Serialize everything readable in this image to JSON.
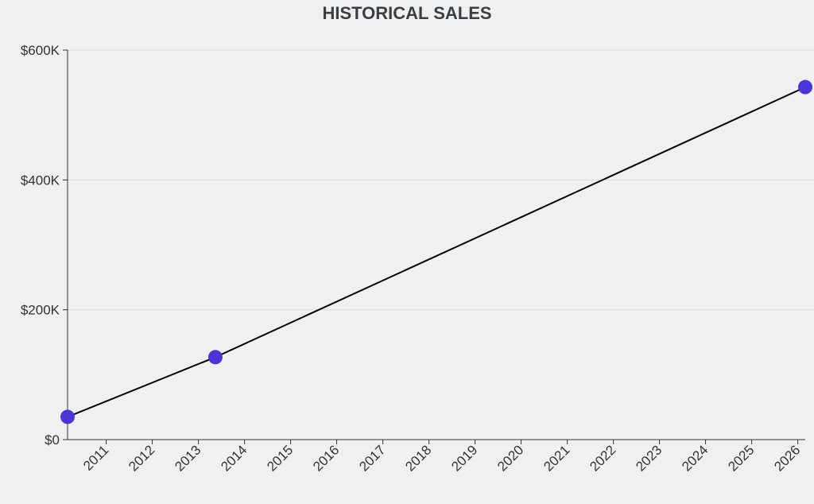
{
  "chart_data": {
    "type": "line",
    "title": "HISTORICAL SALES",
    "xlabel": "",
    "ylabel": "",
    "x_tick_labels": [
      "2011",
      "2012",
      "2013",
      "2014",
      "2015",
      "2016",
      "2017",
      "2018",
      "2019",
      "2020",
      "2021",
      "2022",
      "2023",
      "2024",
      "2025",
      "2026"
    ],
    "y_tick_labels": [
      "$0",
      "$200K",
      "$400K",
      "$600K"
    ],
    "y_tick_values": [
      0,
      200000,
      400000,
      600000
    ],
    "xlim": [
      "2010-03-01",
      "2026-03-01"
    ],
    "ylim": [
      0,
      600000
    ],
    "grid": {
      "horizontal": true,
      "vertical": false
    },
    "series": [
      {
        "points": [
          {
            "x": "2010-03-01",
            "y": 35000
          },
          {
            "x": "2013-05-15",
            "y": 127000
          },
          {
            "x": "2026-03-01",
            "y": 543000
          }
        ]
      }
    ],
    "colors": {
      "line": "#000000",
      "marker": "#4a35d6",
      "background": "#f0f0f0"
    }
  }
}
